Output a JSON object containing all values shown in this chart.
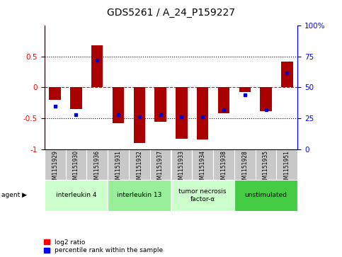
{
  "title": "GDS5261 / A_24_P159227",
  "samples": [
    "GSM1151929",
    "GSM1151930",
    "GSM1151936",
    "GSM1151931",
    "GSM1151932",
    "GSM1151937",
    "GSM1151933",
    "GSM1151934",
    "GSM1151938",
    "GSM1151928",
    "GSM1151935",
    "GSM1151951"
  ],
  "log2_ratios": [
    -0.2,
    -0.35,
    0.68,
    -0.58,
    -0.9,
    -0.56,
    -0.83,
    -0.85,
    -0.42,
    -0.08,
    -0.38,
    0.42
  ],
  "percentile_ranks": [
    35,
    28,
    72,
    28,
    26,
    28,
    26,
    26,
    32,
    44,
    32,
    62
  ],
  "agents": [
    {
      "label": "interleukin 4",
      "start": 0,
      "end": 3,
      "color": "#ccffcc"
    },
    {
      "label": "interleukin 13",
      "start": 3,
      "end": 6,
      "color": "#99ee99"
    },
    {
      "label": "tumor necrosis\nfactor-α",
      "start": 6,
      "end": 9,
      "color": "#ccffcc"
    },
    {
      "label": "unstimulated",
      "start": 9,
      "end": 12,
      "color": "#44cc44"
    }
  ],
  "ylim": [
    -1.0,
    1.0
  ],
  "yticks_left": [
    -1,
    -0.5,
    0,
    0.5
  ],
  "yticks_right": [
    0,
    25,
    50,
    75,
    100
  ],
  "bar_color": "#aa0000",
  "dot_color": "#0000cc",
  "background_color": "#ffffff",
  "title_fontsize": 10,
  "bar_width": 0.55
}
